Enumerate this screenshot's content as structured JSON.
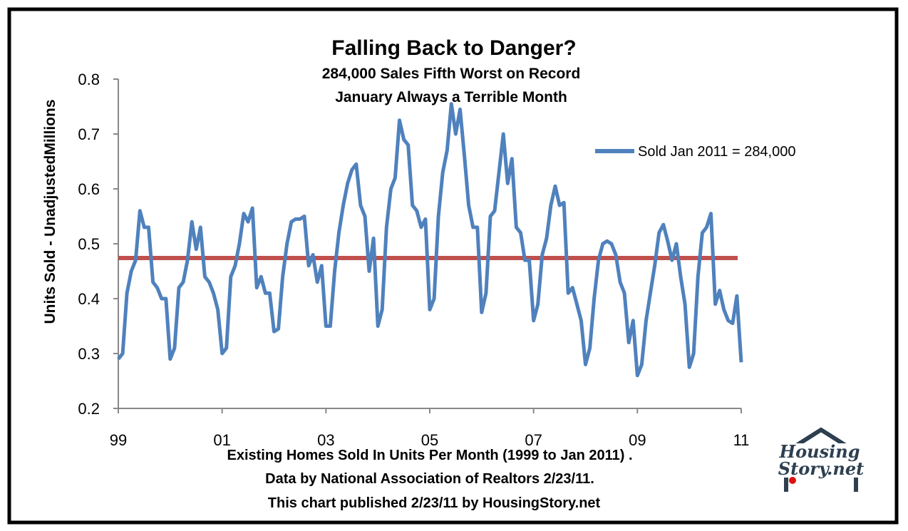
{
  "chart_data": {
    "type": "line",
    "title": "Falling Back to Danger?",
    "subtitle": [
      "284,000 Sales Fifth Worst on Record",
      "January Always a Terrible Month"
    ],
    "ylabel": "Units Sold - UnadjustedMillions",
    "xlabel_lines": [
      "Existing Homes Sold In Units Per Month (1999 to Jan 2011) .",
      "Data by National Association of Realtors 2/23/11.",
      "This chart published 2/23/11 by HousingStory.net"
    ],
    "ylim": [
      0.2,
      0.8
    ],
    "yticks": [
      "0.2",
      "0.3",
      "0.4",
      "0.5",
      "0.6",
      "0.7",
      "0.8"
    ],
    "xticks": [
      "99",
      "01",
      "03",
      "05",
      "07",
      "09",
      "11"
    ],
    "x_range": [
      "Jan 1999",
      "Jan 2011"
    ],
    "grid": false,
    "legend_position": "right",
    "series": [
      {
        "name": "Sold Jan 2011 =  284,000",
        "color": "#4f81bd",
        "values": [
          0.29,
          0.3,
          0.41,
          0.45,
          0.47,
          0.56,
          0.53,
          0.53,
          0.43,
          0.42,
          0.4,
          0.4,
          0.29,
          0.31,
          0.42,
          0.43,
          0.47,
          0.54,
          0.49,
          0.53,
          0.44,
          0.43,
          0.41,
          0.38,
          0.3,
          0.31,
          0.44,
          0.46,
          0.5,
          0.555,
          0.54,
          0.565,
          0.42,
          0.44,
          0.41,
          0.41,
          0.34,
          0.345,
          0.44,
          0.5,
          0.54,
          0.545,
          0.545,
          0.55,
          0.46,
          0.48,
          0.43,
          0.46,
          0.35,
          0.35,
          0.45,
          0.52,
          0.57,
          0.61,
          0.635,
          0.645,
          0.57,
          0.55,
          0.45,
          0.51,
          0.35,
          0.38,
          0.53,
          0.6,
          0.62,
          0.725,
          0.69,
          0.68,
          0.57,
          0.56,
          0.53,
          0.545,
          0.38,
          0.4,
          0.55,
          0.63,
          0.67,
          0.755,
          0.7,
          0.745,
          0.66,
          0.57,
          0.53,
          0.53,
          0.375,
          0.41,
          0.55,
          0.56,
          0.63,
          0.7,
          0.61,
          0.655,
          0.53,
          0.52,
          0.47,
          0.47,
          0.36,
          0.39,
          0.48,
          0.51,
          0.57,
          0.605,
          0.57,
          0.575,
          0.41,
          0.42,
          0.39,
          0.36,
          0.28,
          0.31,
          0.4,
          0.47,
          0.5,
          0.505,
          0.5,
          0.48,
          0.43,
          0.41,
          0.32,
          0.36,
          0.26,
          0.28,
          0.36,
          0.41,
          0.46,
          0.52,
          0.535,
          0.505,
          0.47,
          0.5,
          0.44,
          0.39,
          0.275,
          0.3,
          0.44,
          0.52,
          0.53,
          0.555,
          0.39,
          0.415,
          0.38,
          0.36,
          0.355,
          0.405,
          0.284
        ]
      },
      {
        "color": "#c0504d",
        "values_constant": 0.474
      }
    ]
  },
  "logo": {
    "text": "HousingStory.net",
    "line1": "Housing",
    "line2": "Story.net"
  }
}
